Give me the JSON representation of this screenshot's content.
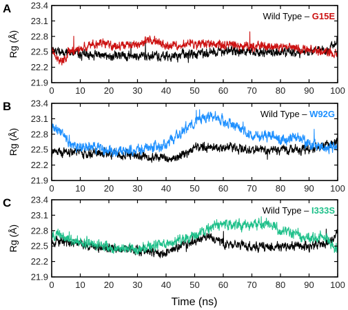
{
  "figure": {
    "xlabel": "Time (ns)"
  },
  "chart_data": [
    {
      "type": "line",
      "panel": "A",
      "ylabel": "Rg (Å)",
      "xlim": [
        0,
        100
      ],
      "ylim": [
        21.9,
        23.4
      ],
      "xticks": [
        "0",
        "10",
        "20",
        "30",
        "40",
        "50",
        "60",
        "70",
        "80",
        "90",
        "100"
      ],
      "yticks": [
        "21.9",
        "22.2",
        "22.5",
        "22.8",
        "23.1",
        "23.4"
      ],
      "legend_parts": [
        "Wild Type – ",
        "G15E"
      ],
      "legend_position": "top-right",
      "series": [
        {
          "name": "Wild Type",
          "color": "#000000",
          "seed": 11,
          "profile": [
            [
              0,
              22.55
            ],
            [
              5,
              22.5
            ],
            [
              10,
              22.45
            ],
            [
              20,
              22.42
            ],
            [
              30,
              22.42
            ],
            [
              40,
              22.42
            ],
            [
              50,
              22.45
            ],
            [
              60,
              22.5
            ],
            [
              70,
              22.5
            ],
            [
              80,
              22.5
            ],
            [
              90,
              22.5
            ],
            [
              96,
              22.5
            ],
            [
              100,
              22.72
            ]
          ],
          "noise": 0.07
        },
        {
          "name": "G15E",
          "color": "#cc1111",
          "seed": 23,
          "profile": [
            [
              0,
              22.6
            ],
            [
              2,
              22.35
            ],
            [
              4,
              22.3
            ],
            [
              6,
              22.5
            ],
            [
              10,
              22.55
            ],
            [
              18,
              22.7
            ],
            [
              20,
              22.6
            ],
            [
              30,
              22.65
            ],
            [
              34,
              22.75
            ],
            [
              40,
              22.6
            ],
            [
              50,
              22.65
            ],
            [
              60,
              22.65
            ],
            [
              70,
              22.6
            ],
            [
              80,
              22.6
            ],
            [
              90,
              22.55
            ],
            [
              100,
              22.45
            ]
          ],
          "noise": 0.07
        }
      ]
    },
    {
      "type": "line",
      "panel": "B",
      "ylabel": "Rg (Å)",
      "xlim": [
        0,
        100
      ],
      "ylim": [
        21.9,
        23.4
      ],
      "xticks": [
        "0",
        "10",
        "20",
        "30",
        "40",
        "50",
        "60",
        "70",
        "80",
        "90",
        "100"
      ],
      "yticks": [
        "21.9",
        "22.2",
        "22.5",
        "22.8",
        "23.1",
        "23.4"
      ],
      "legend_parts": [
        "Wild Type – ",
        "W92G"
      ],
      "legend_position": "top-right",
      "series": [
        {
          "name": "Wild Type",
          "color": "#000000",
          "seed": 37,
          "profile": [
            [
              0,
              22.45
            ],
            [
              10,
              22.45
            ],
            [
              20,
              22.4
            ],
            [
              30,
              22.4
            ],
            [
              40,
              22.35
            ],
            [
              42,
              22.3
            ],
            [
              50,
              22.55
            ],
            [
              60,
              22.55
            ],
            [
              70,
              22.5
            ],
            [
              80,
              22.5
            ],
            [
              90,
              22.5
            ],
            [
              100,
              22.65
            ]
          ],
          "noise": 0.07
        },
        {
          "name": "W92G",
          "color": "#1e90ff",
          "seed": 41,
          "profile": [
            [
              0,
              22.95
            ],
            [
              3,
              22.85
            ],
            [
              8,
              22.55
            ],
            [
              15,
              22.55
            ],
            [
              22,
              22.45
            ],
            [
              30,
              22.5
            ],
            [
              40,
              22.6
            ],
            [
              45,
              22.8
            ],
            [
              50,
              23.05
            ],
            [
              55,
              23.15
            ],
            [
              60,
              23.05
            ],
            [
              65,
              22.95
            ],
            [
              70,
              22.75
            ],
            [
              75,
              22.8
            ],
            [
              80,
              22.7
            ],
            [
              85,
              22.75
            ],
            [
              90,
              22.6
            ],
            [
              95,
              22.55
            ],
            [
              100,
              22.55
            ]
          ],
          "noise": 0.08
        }
      ]
    },
    {
      "type": "line",
      "panel": "C",
      "ylabel": "Rg (Å)",
      "xlim": [
        0,
        100
      ],
      "ylim": [
        21.9,
        23.4
      ],
      "xticks": [
        "0",
        "10",
        "20",
        "30",
        "40",
        "50",
        "60",
        "70",
        "80",
        "90",
        "100"
      ],
      "yticks": [
        "21.9",
        "22.2",
        "22.5",
        "22.8",
        "23.1",
        "23.4"
      ],
      "legend_parts": [
        "Wild Type – ",
        "I333S"
      ],
      "legend_position": "top-right",
      "series": [
        {
          "name": "Wild Type",
          "color": "#000000",
          "seed": 53,
          "profile": [
            [
              0,
              22.6
            ],
            [
              10,
              22.55
            ],
            [
              20,
              22.45
            ],
            [
              30,
              22.42
            ],
            [
              40,
              22.35
            ],
            [
              45,
              22.5
            ],
            [
              50,
              22.6
            ],
            [
              55,
              22.7
            ],
            [
              60,
              22.55
            ],
            [
              70,
              22.5
            ],
            [
              80,
              22.5
            ],
            [
              90,
              22.5
            ],
            [
              96,
              22.55
            ],
            [
              100,
              22.75
            ]
          ],
          "noise": 0.07
        },
        {
          "name": "I333S",
          "color": "#1fc08a",
          "seed": 67,
          "profile": [
            [
              0,
              22.75
            ],
            [
              5,
              22.65
            ],
            [
              10,
              22.6
            ],
            [
              20,
              22.45
            ],
            [
              30,
              22.45
            ],
            [
              40,
              22.55
            ],
            [
              50,
              22.7
            ],
            [
              55,
              22.85
            ],
            [
              60,
              22.95
            ],
            [
              65,
              22.9
            ],
            [
              70,
              22.9
            ],
            [
              75,
              22.95
            ],
            [
              80,
              22.8
            ],
            [
              85,
              22.75
            ],
            [
              90,
              22.65
            ],
            [
              95,
              22.7
            ],
            [
              100,
              22.45
            ]
          ],
          "noise": 0.08
        }
      ]
    }
  ]
}
